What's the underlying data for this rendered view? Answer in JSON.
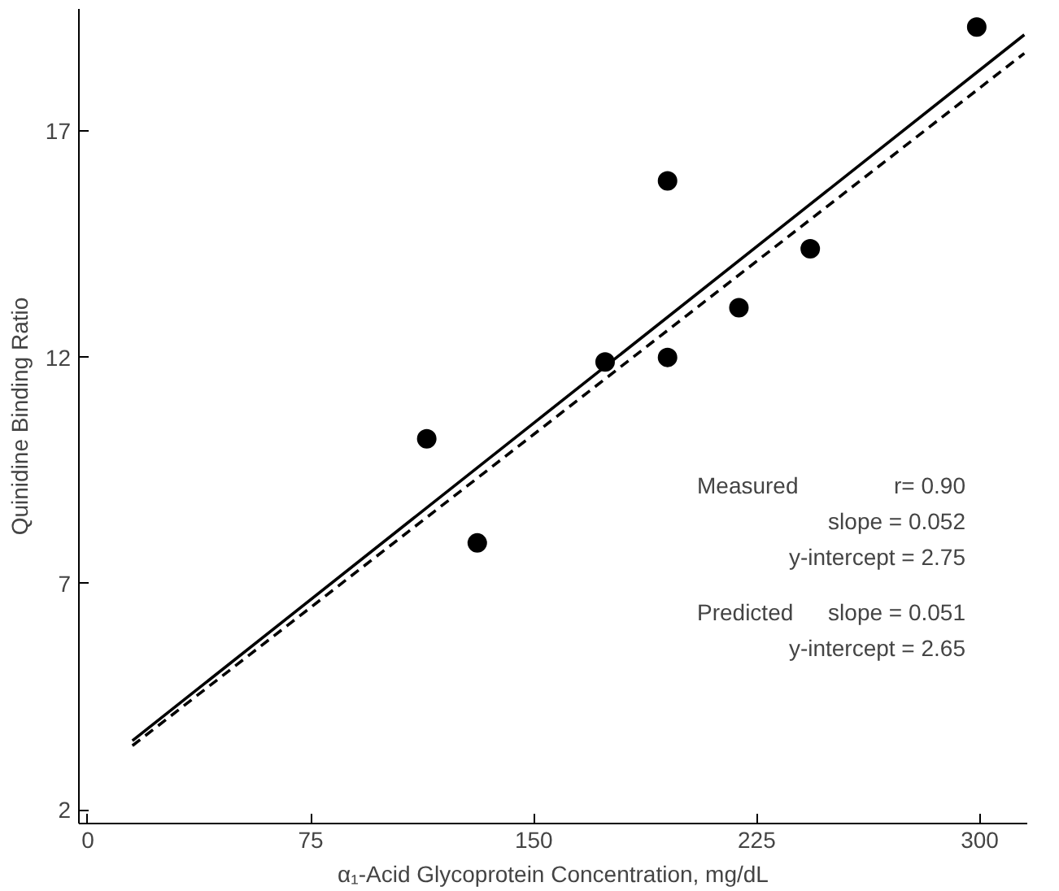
{
  "chart_data": {
    "type": "scatter",
    "xlabel": "α₁-Acid Glycoprotein Concentration, mg/dL",
    "ylabel": "Quinidine Binding Ratio",
    "x": [
      114,
      131,
      174,
      195,
      195,
      219,
      243,
      299
    ],
    "xlim": [
      -3,
      316
    ],
    "ylim": [
      1.7,
      19.7
    ],
    "xticks": [
      0,
      75,
      150,
      225,
      300
    ],
    "yticks": [
      2,
      7,
      12,
      17
    ],
    "grid": false,
    "series": [
      {
        "marker": "circle",
        "color": "#000000",
        "values": [
          10.2,
          7.9,
          11.9,
          15.9,
          12.0,
          13.1,
          14.4,
          19.3
        ]
      },
      {
        "type": "line",
        "line_style": "solid",
        "color": "#000000",
        "x": [
          15,
          150,
          315
        ],
        "values": [
          3.53,
          10.55,
          19.13
        ]
      },
      {
        "type": "line",
        "line_style": "dashed",
        "color": "#000000",
        "x": [
          15,
          150,
          315
        ],
        "values": [
          3.42,
          10.3,
          18.72
        ]
      }
    ],
    "annotations": [
      "Measured",
      "r= 0.90",
      "slope = 0.052",
      "y-intercept = 2.75",
      "Predicted",
      "slope = 0.051",
      "y-intercept = 2.65"
    ]
  }
}
